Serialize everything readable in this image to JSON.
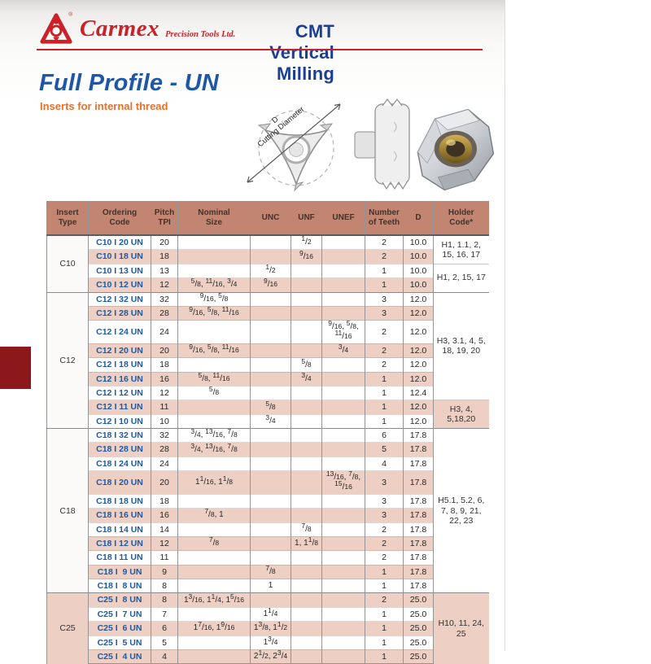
{
  "brand": {
    "name": "Carmex",
    "tagline": "Precision Tools Ltd.",
    "registered": "®"
  },
  "header": {
    "title": "CMT Vertical Milling"
  },
  "section": {
    "title": "Full Profile - UN",
    "subtitle": "Inserts for internal thread"
  },
  "diagram": {
    "dim_letter": "D",
    "dim_label": "Cutting Diameter"
  },
  "colors": {
    "brand_red": "#cb2128",
    "title_blue": "#1c3f94",
    "section_blue": "#1e56a8",
    "subtitle_orange": "#e7702d",
    "header_salmon": "#c28572",
    "stripe_pink": "#edcfc3",
    "code_blue": "#1e5aa5",
    "tab_red": "#8c181c"
  },
  "table": {
    "columns": [
      "Insert\nType",
      "Ordering\nCode",
      "Pitch\nTPI",
      "Nominal\nSize",
      "UNC",
      "UNF",
      "UNEF",
      "Number\nof Teeth",
      "D",
      "Holder\nCode*"
    ],
    "groups": [
      {
        "insert_type": "C10",
        "first_row_shaded": false,
        "rows": [
          {
            "code": "C10 I 20 UN",
            "tpi": "20",
            "nominal": "",
            "unc": "",
            "unf": "1/2",
            "unef": "",
            "teeth": "2",
            "d": "10.0"
          },
          {
            "code": "C10 I 18 UN",
            "tpi": "18",
            "nominal": "",
            "unc": "",
            "unf": "9/16",
            "unef": "",
            "teeth": "2",
            "d": "10.0"
          },
          {
            "code": "C10 I 13 UN",
            "tpi": "13",
            "nominal": "",
            "unc": "1/2",
            "unf": "",
            "unef": "",
            "teeth": "1",
            "d": "10.0"
          },
          {
            "code": "C10 I 12 UN",
            "tpi": "12",
            "nominal": "5/8, 11/16, 3/4",
            "unc": "9/16",
            "unf": "",
            "unef": "",
            "teeth": "1",
            "d": "10.0"
          }
        ],
        "holders": [
          {
            "span": 2,
            "text": "H1, 1.1, 2, 15, 16, 17"
          },
          {
            "span": 2,
            "text": "H1, 2, 15, 17"
          }
        ]
      },
      {
        "insert_type": "C12",
        "first_row_shaded": false,
        "rows": [
          {
            "code": "C12 I 32 UN",
            "tpi": "32",
            "nominal": "9/16, 5/8",
            "unc": "",
            "unf": "",
            "unef": "",
            "teeth": "3",
            "d": "12.0"
          },
          {
            "code": "C12 I 28 UN",
            "tpi": "28",
            "nominal": "9/16, 5/8, 11/16",
            "unc": "",
            "unf": "",
            "unef": "",
            "teeth": "3",
            "d": "12.0"
          },
          {
            "code": "C12 I 24 UN",
            "tpi": "24",
            "nominal": "",
            "unc": "",
            "unf": "",
            "unef": "9/16, 5/8, 11/16",
            "teeth": "2",
            "d": "12.0"
          },
          {
            "code": "C12 I 20 UN",
            "tpi": "20",
            "nominal": "9/16, 5/8, 11/16",
            "unc": "",
            "unf": "",
            "unef": "3/4",
            "teeth": "2",
            "d": "12.0"
          },
          {
            "code": "C12 I 18 UN",
            "tpi": "18",
            "nominal": "",
            "unc": "",
            "unf": "5/8",
            "unef": "",
            "teeth": "2",
            "d": "12.0"
          },
          {
            "code": "C12 I 16 UN",
            "tpi": "16",
            "nominal": "5/8, 11/16",
            "unc": "",
            "unf": "3/4",
            "unef": "",
            "teeth": "1",
            "d": "12.0"
          },
          {
            "code": "C12 I 12 UN",
            "tpi": "12",
            "nominal": "5/8",
            "unc": "",
            "unf": "",
            "unef": "",
            "teeth": "1",
            "d": "12.4"
          },
          {
            "code": "C12 I 11 UN",
            "tpi": "11",
            "nominal": "",
            "unc": "5/8",
            "unf": "",
            "unef": "",
            "teeth": "1",
            "d": "12.0"
          },
          {
            "code": "C12 I 10 UN",
            "tpi": "10",
            "nominal": "",
            "unc": "3/4",
            "unf": "",
            "unef": "",
            "teeth": "1",
            "d": "12.0"
          }
        ],
        "holders": [
          {
            "span": 7,
            "text": "H3, 3.1, 4, 5, 18, 19, 20"
          },
          {
            "span": 2,
            "text": "H3, 4, 5,18,20"
          }
        ]
      },
      {
        "insert_type": "C18",
        "first_row_shaded": false,
        "rows": [
          {
            "code": "C18 I 32 UN",
            "tpi": "32",
            "nominal": "3/4, 13/16, 7/8",
            "unc": "",
            "unf": "",
            "unef": "",
            "teeth": "6",
            "d": "17.8"
          },
          {
            "code": "C18 I 28 UN",
            "tpi": "28",
            "nominal": "3/4, 13/16, 7/8",
            "unc": "",
            "unf": "",
            "unef": "",
            "teeth": "5",
            "d": "17.8"
          },
          {
            "code": "C18 I 24 UN",
            "tpi": "24",
            "nominal": "",
            "unc": "",
            "unf": "",
            "unef": "",
            "teeth": "4",
            "d": "17.8"
          },
          {
            "code": "C18 I 20 UN",
            "tpi": "20",
            "nominal": "1 1/16, 1 1/8",
            "unc": "",
            "unf": "",
            "unef": "13/16, 7/8, 15/16",
            "teeth": "3",
            "d": "17.8"
          },
          {
            "code": "C18 I 18 UN",
            "tpi": "18",
            "nominal": "",
            "unc": "",
            "unf": "",
            "unef": "",
            "teeth": "3",
            "d": "17.8"
          },
          {
            "code": "C18 I 16 UN",
            "tpi": "16",
            "nominal": "7/8, 1",
            "unc": "",
            "unf": "",
            "unef": "",
            "teeth": "3",
            "d": "17.8"
          },
          {
            "code": "C18 I 14 UN",
            "tpi": "14",
            "nominal": "",
            "unc": "",
            "unf": "7/8",
            "unef": "",
            "teeth": "2",
            "d": "17.8"
          },
          {
            "code": "C18 I 12 UN",
            "tpi": "12",
            "nominal": "7/8",
            "unc": "",
            "unf": "1, 1 1/8",
            "unef": "",
            "teeth": "2",
            "d": "17.8"
          },
          {
            "code": "C18 I 11 UN",
            "tpi": "11",
            "nominal": "",
            "unc": "",
            "unf": "",
            "unef": "",
            "teeth": "2",
            "d": "17.8"
          },
          {
            "code": "C18 I  9 UN",
            "tpi": "9",
            "nominal": "",
            "unc": "7/8",
            "unf": "",
            "unef": "",
            "teeth": "1",
            "d": "17.8"
          },
          {
            "code": "C18 I  8 UN",
            "tpi": "8",
            "nominal": "",
            "unc": "1",
            "unf": "",
            "unef": "",
            "teeth": "1",
            "d": "17.8"
          }
        ],
        "holders": [
          {
            "span": 11,
            "text": "H5.1, 5.2, 6, 7, 8, 9, 21, 22, 23"
          }
        ]
      },
      {
        "insert_type": "C25",
        "first_row_shaded": true,
        "rows": [
          {
            "code": "C25 I  8 UN",
            "tpi": "8",
            "nominal": "1 3/16, 1 1/4, 1 5/16",
            "unc": "",
            "unf": "",
            "unef": "",
            "teeth": "2",
            "d": "25.0"
          },
          {
            "code": "C25 I  7 UN",
            "tpi": "7",
            "nominal": "",
            "unc": "1 1/4",
            "unf": "",
            "unef": "",
            "teeth": "1",
            "d": "25.0"
          },
          {
            "code": "C25 I  6 UN",
            "tpi": "6",
            "nominal": "1 7/16, 1 9/16",
            "unc": "1 3/8, 1 1/2",
            "unf": "",
            "unef": "",
            "teeth": "1",
            "d": "25.0"
          },
          {
            "code": "C25 I  5 UN",
            "tpi": "5",
            "nominal": "",
            "unc": "1 3/4",
            "unf": "",
            "unef": "",
            "teeth": "1",
            "d": "25.0"
          },
          {
            "code": "C25 I  4 UN",
            "tpi": "4",
            "nominal": "",
            "unc": "2 1/2, 2 3/4",
            "unf": "",
            "unef": "",
            "teeth": "1",
            "d": "25.0"
          }
        ],
        "holders": [
          {
            "span": 5,
            "text": "H10, 11, 24, 25"
          }
        ]
      }
    ]
  }
}
